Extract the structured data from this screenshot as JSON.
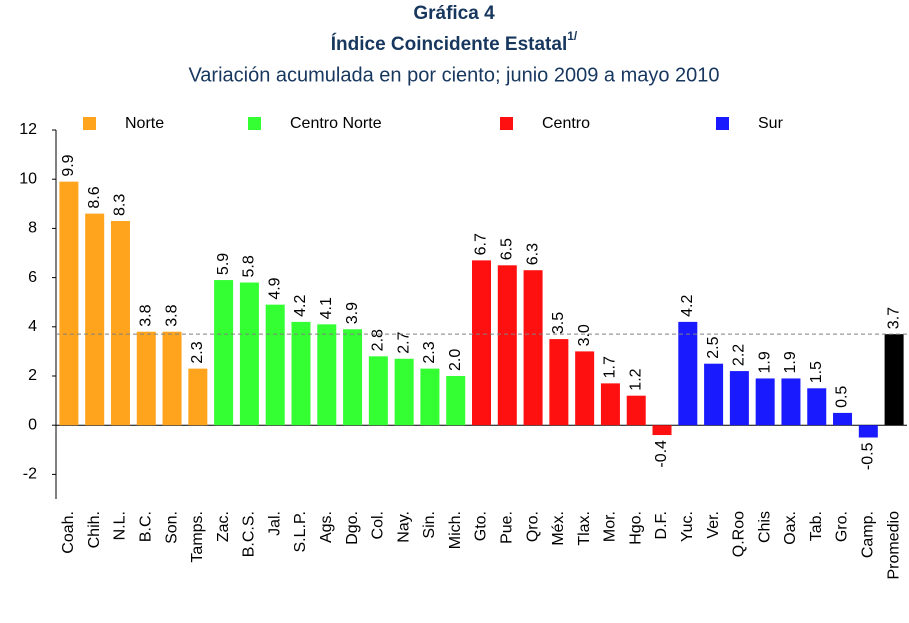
{
  "chart_data": {
    "type": "bar",
    "title": "Gráfica 4",
    "title2": "Índice Coincidente Estatal",
    "title2_note": "1/",
    "subtitle": "Variación acumulada en por ciento; junio 2009 a mayo 2010",
    "categories": [
      "Coah.",
      "Chih.",
      "N.L.",
      "B.C.",
      "Son.",
      "Tamps.",
      "Zac.",
      "B.C.S.",
      "Jal.",
      "S.L.P.",
      "Ags.",
      "Dgo.",
      "Col.",
      "Nay.",
      "Sin.",
      "Mich.",
      "Gto.",
      "Pue.",
      "Qro.",
      "Méx.",
      "Tlax.",
      "Mor.",
      "Hgo.",
      "D.F.",
      "Yuc.",
      "Ver.",
      "Q.Roo",
      "Chis",
      "Oax.",
      "Tab.",
      "Gro.",
      "Camp.",
      "Promedio"
    ],
    "values": [
      9.9,
      8.6,
      8.3,
      3.8,
      3.8,
      2.3,
      5.9,
      5.8,
      4.9,
      4.2,
      4.1,
      3.9,
      2.8,
      2.7,
      2.3,
      2.0,
      6.7,
      6.5,
      6.3,
      3.5,
      3.0,
      1.7,
      1.2,
      -0.4,
      4.2,
      2.5,
      2.2,
      1.9,
      1.9,
      1.5,
      0.5,
      -0.5,
      3.7
    ],
    "value_labels": [
      "9.9",
      "8.6",
      "8.3",
      "3.8",
      "3.8",
      "2.3",
      "5.9",
      "5.8",
      "4.9",
      "4.2",
      "4.1",
      "3.9",
      "2.8",
      "2.7",
      "2.3",
      "2.0",
      "6.7",
      "6.5",
      "6.3",
      "3.5",
      "3.0",
      "1.7",
      "1.2",
      "-0.4",
      "4.2",
      "2.5",
      "2.2",
      "1.9",
      "1.9",
      "1.5",
      "0.5",
      "-0.5",
      "3.7"
    ],
    "colors": [
      "#ffa41c",
      "#ffa41c",
      "#ffa41c",
      "#ffa41c",
      "#ffa41c",
      "#ffa41c",
      "#33ff33",
      "#33ff33",
      "#33ff33",
      "#33ff33",
      "#33ff33",
      "#33ff33",
      "#33ff33",
      "#33ff33",
      "#33ff33",
      "#33ff33",
      "#ff1010",
      "#ff1010",
      "#ff1010",
      "#ff1010",
      "#ff1010",
      "#ff1010",
      "#ff1010",
      "#ff1010",
      "#1a1aff",
      "#1a1aff",
      "#1a1aff",
      "#1a1aff",
      "#1a1aff",
      "#1a1aff",
      "#1a1aff",
      "#1a1aff",
      "#000000"
    ],
    "legend": [
      {
        "name": "Norte",
        "color": "#ffa41c"
      },
      {
        "name": "Centro Norte",
        "color": "#33ff33"
      },
      {
        "name": "Centro",
        "color": "#ff1010"
      },
      {
        "name": "Sur",
        "color": "#1a1aff"
      }
    ],
    "reference_line": 3.7,
    "ylim": [
      -3,
      12
    ],
    "yticks": [
      -2,
      0,
      2,
      4,
      6,
      8,
      10,
      12
    ]
  }
}
